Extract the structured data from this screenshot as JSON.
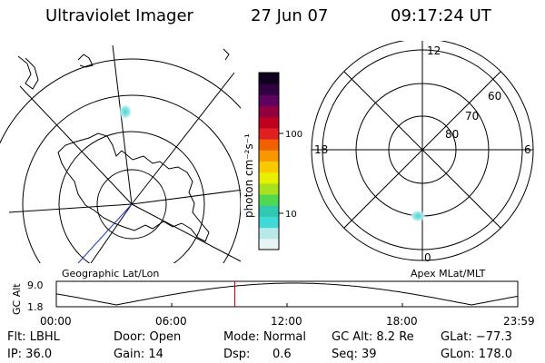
{
  "header": {
    "instrument": "Ultraviolet Imager",
    "date": "27 Jun 07",
    "time": "09:17:24 UT"
  },
  "left_panel": {
    "label": "Geographic Lat/Lon"
  },
  "right_panel": {
    "label": "Apex MLat/MLT",
    "mlt_labels": [
      "12",
      "18",
      "6",
      "0"
    ],
    "lat_labels": [
      "60",
      "70",
      "80"
    ]
  },
  "colorbar": {
    "unit_label": "photon cm⁻²s⁻¹",
    "ticks": [
      "100",
      "10"
    ],
    "colors": [
      "#e8f4f4",
      "#b8e8e8",
      "#40d8d8",
      "#30c8b0",
      "#50d850",
      "#a8e020",
      "#e8f000",
      "#f8c800",
      "#f89800",
      "#f06000",
      "#e02020",
      "#c00020",
      "#900040",
      "#600060",
      "#300040",
      "#100020"
    ]
  },
  "altitude_plot": {
    "ylabel": "GC Alt",
    "yticks": [
      "9.0",
      "1.8"
    ],
    "xticks": [
      "00:00",
      "06:00",
      "12:00",
      "18:00",
      "23:59"
    ],
    "current_time_marker_color": "#cc0000",
    "curve_color": "#000000"
  },
  "metadata": {
    "filter": "Flt: LBHL",
    "door": "Door: Open",
    "mode": "Mode: Normal",
    "gc_alt": "GC Alt: 8.2 Re",
    "glat": "GLat: −77.3",
    "ip": "IP: 36.0",
    "gain": "Gain: 14",
    "dsp_label": "Dsp:",
    "dsp_value": "0.6",
    "seq": "Seq: 39",
    "glon": "GLon: 178.0"
  }
}
